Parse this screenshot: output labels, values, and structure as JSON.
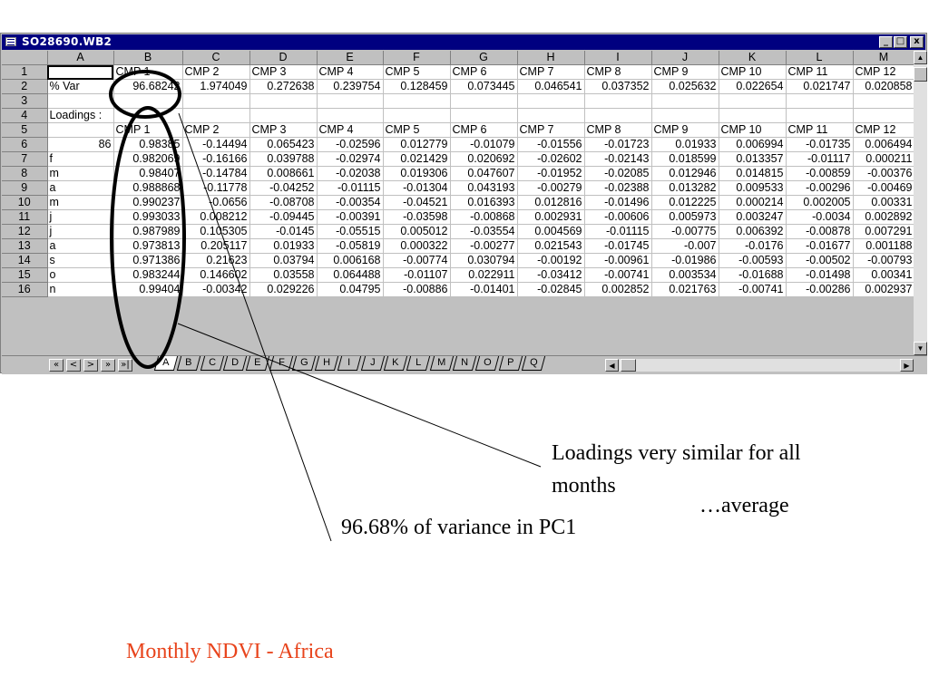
{
  "window": {
    "title": "SO28690.WB2",
    "controls": [
      "_",
      "□",
      "x"
    ]
  },
  "columns": [
    "A",
    "B",
    "C",
    "D",
    "E",
    "F",
    "G",
    "H",
    "I",
    "J",
    "K",
    "L",
    "M"
  ],
  "rows": [
    {
      "n": "1",
      "cells": [
        "",
        "CMP 1",
        "CMP 2",
        "CMP 3",
        "CMP 4",
        "CMP 5",
        "CMP 6",
        "CMP 7",
        "CMP 8",
        "CMP 9",
        "CMP 10",
        "CMP 11",
        "CMP 12"
      ]
    },
    {
      "n": "2",
      "cells": [
        "% Var",
        "96.68242",
        "1.974049",
        "0.272638",
        "0.239754",
        "0.128459",
        "0.073445",
        "0.046541",
        "0.037352",
        "0.025632",
        "0.022654",
        "0.021747",
        "0.020858"
      ]
    },
    {
      "n": "3",
      "cells": [
        "",
        "",
        "",
        "",
        "",
        "",
        "",
        "",
        "",
        "",
        "",
        "",
        ""
      ]
    },
    {
      "n": "4",
      "cells": [
        "Loadings :",
        "",
        "",
        "",
        "",
        "",
        "",
        "",
        "",
        "",
        "",
        "",
        ""
      ]
    },
    {
      "n": "5",
      "cells": [
        "",
        "CMP 1",
        "CMP 2",
        "CMP 3",
        "CMP 4",
        "CMP 5",
        "CMP 6",
        "CMP 7",
        "CMP 8",
        "CMP 9",
        "CMP 10",
        "CMP 11",
        "CMP 12"
      ]
    },
    {
      "n": "6",
      "cells": [
        "86",
        "0.98385",
        "-0.14494",
        "0.065423",
        "-0.02596",
        "0.012779",
        "-0.01079",
        "-0.01556",
        "-0.01723",
        "0.01933",
        "0.006994",
        "-0.01735",
        "0.006494"
      ]
    },
    {
      "n": "7",
      "cells": [
        "f",
        "0.982069",
        "-0.16166",
        "0.039788",
        "-0.02974",
        "0.021429",
        "0.020692",
        "-0.02602",
        "-0.02143",
        "0.018599",
        "0.013357",
        "-0.01117",
        "0.000211"
      ]
    },
    {
      "n": "8",
      "cells": [
        "m",
        "0.98407",
        "-0.14784",
        "0.008661",
        "-0.02038",
        "0.019306",
        "0.047607",
        "-0.01952",
        "-0.02085",
        "0.012946",
        "0.014815",
        "-0.00859",
        "-0.00376"
      ]
    },
    {
      "n": "9",
      "cells": [
        "a",
        "0.988868",
        "-0.11778",
        "-0.04252",
        "-0.01115",
        "-0.01304",
        "0.043193",
        "-0.00279",
        "-0.02388",
        "0.013282",
        "0.009533",
        "-0.00296",
        "-0.00469"
      ]
    },
    {
      "n": "10",
      "cells": [
        "m",
        "0.990237",
        "-0.0656",
        "-0.08708",
        "-0.00354",
        "-0.04521",
        "0.016393",
        "0.012816",
        "-0.01496",
        "0.012225",
        "0.000214",
        "0.002005",
        "0.00331"
      ]
    },
    {
      "n": "11",
      "cells": [
        "j",
        "0.993033",
        "0.008212",
        "-0.09445",
        "-0.00391",
        "-0.03598",
        "-0.00868",
        "0.002931",
        "-0.00606",
        "0.005973",
        "0.003247",
        "-0.0034",
        "0.002892"
      ]
    },
    {
      "n": "12",
      "cells": [
        "j",
        "0.987989",
        "0.105305",
        "-0.0145",
        "-0.05515",
        "0.005012",
        "-0.03554",
        "0.004569",
        "-0.01115",
        "-0.00775",
        "0.006392",
        "-0.00878",
        "0.007291"
      ]
    },
    {
      "n": "13",
      "cells": [
        "a",
        "0.973813",
        "0.205117",
        "0.01933",
        "-0.05819",
        "0.000322",
        "-0.00277",
        "0.021543",
        "-0.01745",
        "-0.007",
        "-0.0176",
        "-0.01677",
        "0.001188"
      ]
    },
    {
      "n": "14",
      "cells": [
        "s",
        "0.971386",
        "0.21623",
        "0.03794",
        "0.006168",
        "-0.00774",
        "0.030794",
        "-0.00192",
        "-0.00961",
        "-0.01986",
        "-0.00593",
        "-0.00502",
        "-0.00793"
      ]
    },
    {
      "n": "15",
      "cells": [
        "o",
        "0.983244",
        "0.146602",
        "0.03558",
        "0.064488",
        "-0.01107",
        "0.022911",
        "-0.03412",
        "-0.00741",
        "0.003534",
        "-0.01688",
        "-0.01498",
        "0.00341"
      ]
    },
    {
      "n": "16",
      "cells": [
        "n",
        "0.99404",
        "-0.00342",
        "0.029226",
        "0.04795",
        "-0.00886",
        "-0.01401",
        "-0.02845",
        "0.002852",
        "0.021763",
        "-0.00741",
        "-0.00286",
        "0.002937"
      ]
    }
  ],
  "tabs": {
    "nav": [
      "«",
      "<",
      ">",
      "»",
      "»|"
    ],
    "sheets": [
      "A",
      "B",
      "C",
      "D",
      "E",
      "F",
      "G",
      "H",
      "I",
      "J",
      "K",
      "L",
      "M",
      "N",
      "O",
      "P",
      "Q"
    ],
    "active": "A"
  },
  "annotations": {
    "loadings_note_line1": "Loadings very similar for all",
    "loadings_note_line2": "months",
    "average_note": "…average",
    "variance_note": "96.68% of variance in PC1",
    "slide_title": "Monthly NDVI - Africa",
    "slide_title_color": "#e8441c"
  }
}
